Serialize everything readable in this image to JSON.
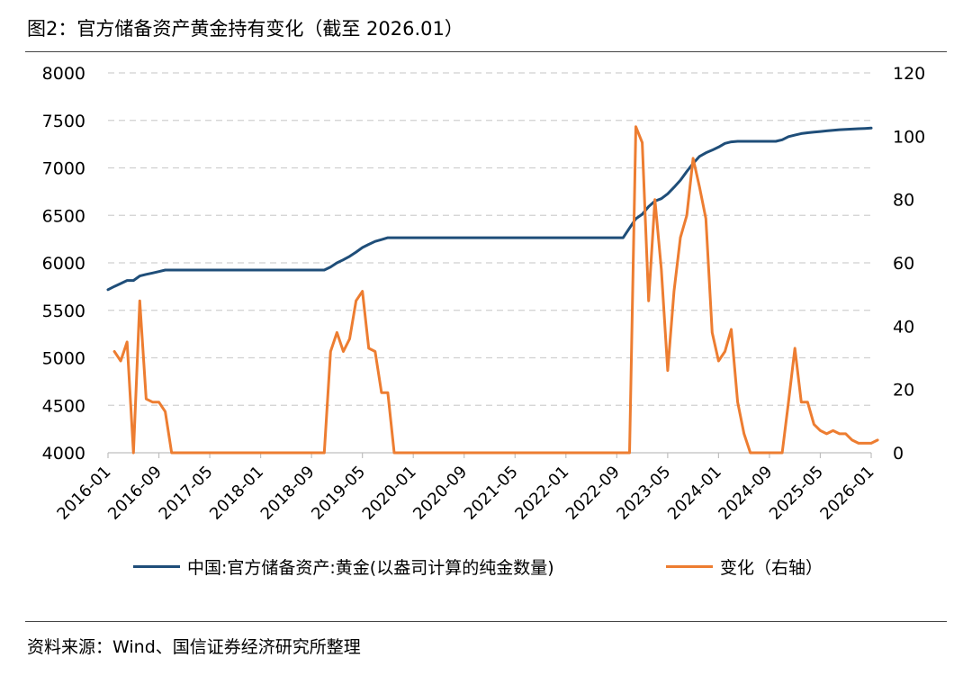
{
  "header": {
    "title": "图2：官方储备资产黄金持有变化（截至 2026.01）"
  },
  "footer": {
    "source": "资料来源：Wind、国信证券经济研究所整理"
  },
  "colors": {
    "left_series": "#1f4e79",
    "right_series": "#ed7d31",
    "grid": "#d0d0d0"
  },
  "chart_data": {
    "type": "line",
    "title": "",
    "x_ticks": [
      "2016-01",
      "2016-09",
      "2017-05",
      "2018-01",
      "2018-09",
      "2019-05",
      "2020-01",
      "2020-09",
      "2021-05",
      "2022-01",
      "2022-09",
      "2023-05",
      "2024-01",
      "2024-09",
      "2025-05",
      "2026-01"
    ],
    "y_left": {
      "ticks": [
        "4000",
        "4500",
        "5000",
        "5500",
        "6000",
        "6500",
        "7000",
        "7500",
        "8000"
      ],
      "ylim": [
        4000,
        8000
      ]
    },
    "y_right": {
      "ticks": [
        "0",
        "20",
        "40",
        "60",
        "80",
        "100",
        "120"
      ],
      "ylim": [
        0,
        120
      ]
    },
    "grid": "horizontal dashed",
    "legend_position": "bottom",
    "series": [
      {
        "name": "中国:官方储备资产:黄金(以盎司计算的纯金数量)",
        "axis": "left",
        "points": [
          [
            "2016-01",
            5718
          ],
          [
            "2016-02",
            5752
          ],
          [
            "2016-03",
            5782
          ],
          [
            "2016-04",
            5814
          ],
          [
            "2016-05",
            5814
          ],
          [
            "2016-06",
            5862
          ],
          [
            "2016-07",
            5879
          ],
          [
            "2016-08",
            5893
          ],
          [
            "2016-09",
            5908
          ],
          [
            "2016-10",
            5924
          ],
          [
            "2017-05",
            5924
          ],
          [
            "2018-01",
            5924
          ],
          [
            "2018-09",
            5924
          ],
          [
            "2018-10",
            5924
          ],
          [
            "2018-11",
            5924
          ],
          [
            "2018-12",
            5956
          ],
          [
            "2019-01",
            6000
          ],
          [
            "2019-02",
            6032
          ],
          [
            "2019-03",
            6068
          ],
          [
            "2019-04",
            6113
          ],
          [
            "2019-05",
            6161
          ],
          [
            "2019-06",
            6194
          ],
          [
            "2019-07",
            6226
          ],
          [
            "2019-08",
            6245
          ],
          [
            "2019-09",
            6264
          ],
          [
            "2019-10",
            6264
          ],
          [
            "2020-01",
            6264
          ],
          [
            "2020-09",
            6264
          ],
          [
            "2021-05",
            6264
          ],
          [
            "2022-01",
            6264
          ],
          [
            "2022-09",
            6264
          ],
          [
            "2022-10",
            6264
          ],
          [
            "2022-11",
            6367
          ],
          [
            "2022-12",
            6464
          ],
          [
            "2023-01",
            6512
          ],
          [
            "2023-02",
            6592
          ],
          [
            "2023-03",
            6650
          ],
          [
            "2023-04",
            6676
          ],
          [
            "2023-05",
            6727
          ],
          [
            "2023-06",
            6795
          ],
          [
            "2023-07",
            6869
          ],
          [
            "2023-08",
            6962
          ],
          [
            "2023-09",
            7046
          ],
          [
            "2023-10",
            7120
          ],
          [
            "2023-11",
            7158
          ],
          [
            "2023-12",
            7187
          ],
          [
            "2024-01",
            7219
          ],
          [
            "2024-02",
            7258
          ],
          [
            "2024-03",
            7274
          ],
          [
            "2024-04",
            7280
          ],
          [
            "2024-05",
            7280
          ],
          [
            "2024-09",
            7280
          ],
          [
            "2024-10",
            7280
          ],
          [
            "2024-11",
            7296
          ],
          [
            "2024-12",
            7329
          ],
          [
            "2025-01",
            7345
          ],
          [
            "2025-02",
            7361
          ],
          [
            "2025-03",
            7370
          ],
          [
            "2025-04",
            7377
          ],
          [
            "2025-05",
            7383
          ],
          [
            "2025-06",
            7390
          ],
          [
            "2025-07",
            7396
          ],
          [
            "2025-08",
            7402
          ],
          [
            "2025-09",
            7406
          ],
          [
            "2025-10",
            7409
          ],
          [
            "2025-11",
            7412
          ],
          [
            "2025-12",
            7415
          ],
          [
            "2026-01",
            7419
          ]
        ]
      },
      {
        "name": "变化（右轴）",
        "axis": "right",
        "points": [
          [
            "2016-02",
            32
          ],
          [
            "2016-03",
            29
          ],
          [
            "2016-04",
            35
          ],
          [
            "2016-05",
            0
          ],
          [
            "2016-06",
            48
          ],
          [
            "2016-07",
            17
          ],
          [
            "2016-08",
            16
          ],
          [
            "2016-09",
            16
          ],
          [
            "2016-10",
            13
          ],
          [
            "2016-11",
            0
          ],
          [
            "2017-05",
            0
          ],
          [
            "2018-01",
            0
          ],
          [
            "2018-09",
            0
          ],
          [
            "2018-10",
            0
          ],
          [
            "2018-11",
            0
          ],
          [
            "2018-12",
            32
          ],
          [
            "2019-01",
            38
          ],
          [
            "2019-02",
            32
          ],
          [
            "2019-03",
            36
          ],
          [
            "2019-04",
            48
          ],
          [
            "2019-05",
            51
          ],
          [
            "2019-06",
            33
          ],
          [
            "2019-07",
            32
          ],
          [
            "2019-08",
            19
          ],
          [
            "2019-09",
            19
          ],
          [
            "2019-10",
            0
          ],
          [
            "2020-01",
            0
          ],
          [
            "2020-09",
            0
          ],
          [
            "2021-05",
            0
          ],
          [
            "2022-01",
            0
          ],
          [
            "2022-09",
            0
          ],
          [
            "2022-10",
            0
          ],
          [
            "2022-11",
            0
          ],
          [
            "2022-12",
            103
          ],
          [
            "2023-01",
            98
          ],
          [
            "2023-02",
            48
          ],
          [
            "2023-03",
            80
          ],
          [
            "2023-04",
            58
          ],
          [
            "2023-05",
            26
          ],
          [
            "2023-06",
            51
          ],
          [
            "2023-07",
            68
          ],
          [
            "2023-08",
            75
          ],
          [
            "2023-09",
            93
          ],
          [
            "2023-10",
            84
          ],
          [
            "2023-11",
            74
          ],
          [
            "2023-12",
            38
          ],
          [
            "2024-01",
            29
          ],
          [
            "2024-02",
            32
          ],
          [
            "2024-03",
            39
          ],
          [
            "2024-04",
            16
          ],
          [
            "2024-05",
            6
          ],
          [
            "2024-06",
            0
          ],
          [
            "2024-09",
            0
          ],
          [
            "2024-10",
            0
          ],
          [
            "2024-11",
            0
          ],
          [
            "2024-12",
            16
          ],
          [
            "2025-01",
            33
          ],
          [
            "2025-02",
            16
          ],
          [
            "2025-03",
            16
          ],
          [
            "2025-04",
            9
          ],
          [
            "2025-05",
            7
          ],
          [
            "2025-06",
            6
          ],
          [
            "2025-07",
            7
          ],
          [
            "2025-08",
            6
          ],
          [
            "2025-09",
            6
          ],
          [
            "2025-10",
            4
          ],
          [
            "2025-11",
            3
          ],
          [
            "2025-12",
            3
          ],
          [
            "2026-01",
            3
          ],
          [
            "2026-02",
            4
          ]
        ]
      }
    ]
  }
}
